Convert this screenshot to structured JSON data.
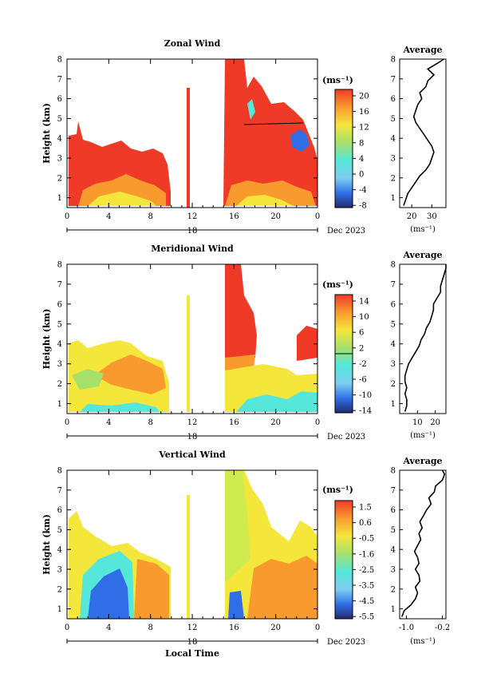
{
  "figure": {
    "xlabel": "Local Time",
    "date_label": "Dec 2023",
    "colors": {
      "red": "#f03a28",
      "orange": "#f99a2e",
      "yellow": "#f5e63c",
      "lime": "#cfec4f",
      "green": "#a6e06a",
      "cyan": "#55e7d9",
      "lightblue": "#7fcdf0",
      "blue": "#2f6ee6",
      "navy": "#2a2f8c",
      "darknavy": "#232a6e"
    }
  },
  "chart_data": [
    {
      "type": "heatmap",
      "title": "Zonal Wind",
      "ylabel": "Height (km)",
      "xlim": [
        0,
        24
      ],
      "x_ticks": [
        "0",
        "4",
        "8",
        "12",
        "16",
        "20",
        "0"
      ],
      "day_label": "18",
      "ylim": [
        0.5,
        8
      ],
      "y_ticks": [
        1,
        2,
        3,
        4,
        5,
        6,
        7,
        8
      ],
      "colorbar": {
        "unit_label": "(ms⁻¹)",
        "ticks": [
          "20",
          "16",
          "12",
          "8",
          "4",
          "0",
          "-4",
          "-8"
        ]
      },
      "profile": {
        "title": "Average",
        "x_ticks": [
          "20",
          "30"
        ],
        "xlim": [
          14,
          37
        ],
        "xlabel": "(ms⁻¹)",
        "height": [
          0.6,
          0.9,
          1.2,
          1.5,
          1.8,
          2.1,
          2.4,
          2.7,
          3.0,
          3.3,
          3.6,
          3.9,
          4.2,
          4.5,
          4.8,
          5.1,
          5.4,
          5.7,
          6.0,
          6.3,
          6.6,
          6.9,
          7.2,
          7.5,
          7.8,
          8.0
        ],
        "values": [
          16,
          17,
          18,
          20,
          22,
          24,
          27,
          29,
          30,
          31,
          30,
          28,
          26,
          24,
          22,
          21,
          22,
          23,
          25,
          24,
          27,
          28,
          31,
          28,
          33,
          36
        ]
      }
    },
    {
      "type": "heatmap",
      "title": "Meridional Wind",
      "ylabel": "Height (km)",
      "xlim": [
        0,
        24
      ],
      "x_ticks": [
        "0",
        "4",
        "8",
        "12",
        "16",
        "20",
        "0"
      ],
      "day_label": "18",
      "ylim": [
        0.5,
        8
      ],
      "y_ticks": [
        1,
        2,
        3,
        4,
        5,
        6,
        7,
        8
      ],
      "colorbar": {
        "unit_label": "(ms⁻¹)",
        "ticks": [
          "14",
          "10",
          "6",
          "2",
          "-2",
          "-6",
          "-10",
          "-14"
        ]
      },
      "profile": {
        "title": "Average",
        "x_ticks": [
          "10",
          "20"
        ],
        "xlim": [
          0,
          26
        ],
        "xlabel": "(ms⁻¹)",
        "height": [
          0.6,
          0.9,
          1.2,
          1.5,
          1.8,
          2.1,
          2.4,
          2.7,
          3.0,
          3.3,
          3.6,
          3.9,
          4.2,
          4.5,
          4.8,
          5.1,
          5.4,
          5.7,
          6.0,
          6.3,
          6.6,
          6.9,
          7.2,
          7.5,
          7.8,
          8.0
        ],
        "values": [
          3,
          4,
          4,
          3,
          4,
          3,
          3,
          4,
          5,
          7,
          9,
          11,
          12,
          14,
          15,
          17,
          18,
          19,
          19,
          21,
          23,
          23,
          24,
          25,
          26,
          26
        ]
      }
    },
    {
      "type": "heatmap",
      "title": "Vertical Wind",
      "ylabel": "Height (km)",
      "xlim": [
        0,
        24
      ],
      "x_ticks": [
        "0",
        "4",
        "8",
        "12",
        "16",
        "20",
        "0"
      ],
      "day_label": "18",
      "ylim": [
        0.5,
        8
      ],
      "y_ticks": [
        1,
        2,
        3,
        4,
        5,
        6,
        7,
        8
      ],
      "colorbar": {
        "unit_label": "(ms⁻¹)",
        "ticks": [
          "1.5",
          "0.6",
          "-0.5",
          "-1.6",
          "-2.5",
          "-3.5",
          "-4.5",
          "-5.5"
        ]
      },
      "profile": {
        "title": "Average",
        "x_ticks": [
          "-1.0",
          "-0.2"
        ],
        "xlim": [
          -1.15,
          -0.12
        ],
        "xlabel": "(ms⁻¹)",
        "height": [
          0.6,
          0.9,
          1.2,
          1.5,
          1.8,
          2.1,
          2.4,
          2.7,
          3.0,
          3.3,
          3.6,
          3.9,
          4.2,
          4.5,
          4.8,
          5.1,
          5.4,
          5.7,
          6.0,
          6.3,
          6.6,
          6.9,
          7.2,
          7.5,
          7.8,
          8.0
        ],
        "values": [
          -1.1,
          -1.05,
          -0.9,
          -0.8,
          -0.75,
          -0.8,
          -0.7,
          -0.72,
          -0.8,
          -0.72,
          -0.75,
          -0.82,
          -0.75,
          -0.68,
          -0.72,
          -0.65,
          -0.7,
          -0.62,
          -0.55,
          -0.45,
          -0.5,
          -0.38,
          -0.35,
          -0.2,
          -0.15,
          -0.2
        ]
      }
    }
  ]
}
